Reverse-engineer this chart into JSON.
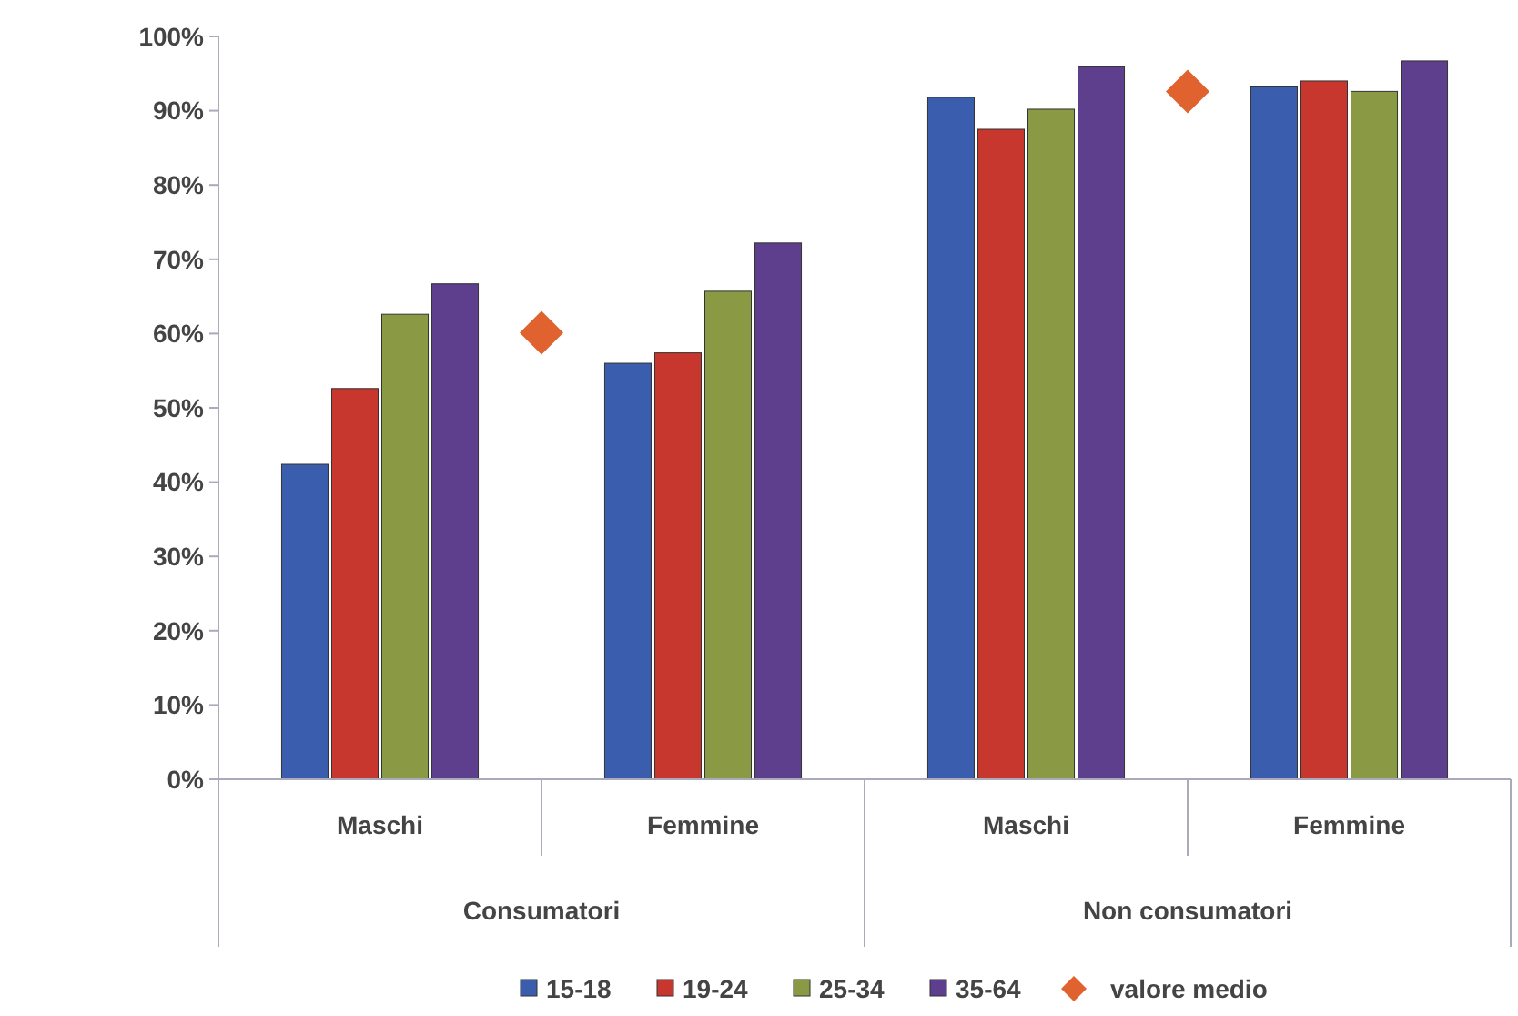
{
  "chart_data": {
    "type": "bar",
    "categories": [
      "Maschi",
      null,
      "Femmine",
      "Maschi",
      null,
      "Femmine"
    ],
    "annotations": [
      "Consumatori",
      "Non consumatori"
    ],
    "ylim": [
      0,
      100
    ],
    "yticks": [
      {
        "value": 0,
        "label": "0%"
      },
      {
        "value": 10,
        "label": "10%"
      },
      {
        "value": 20,
        "label": "20%"
      },
      {
        "value": 30,
        "label": "30%"
      },
      {
        "value": 40,
        "label": "40%"
      },
      {
        "value": 50,
        "label": "50%"
      },
      {
        "value": 60,
        "label": "60%"
      },
      {
        "value": 70,
        "label": "70%"
      },
      {
        "value": 80,
        "label": "80%"
      },
      {
        "value": 90,
        "label": "90%"
      },
      {
        "value": 100,
        "label": "100%"
      }
    ],
    "series": [
      {
        "name": "15-18",
        "color": "#3a5dae",
        "values": [
          42.4,
          null,
          56.0,
          91.8,
          null,
          93.2
        ]
      },
      {
        "name": "19-24",
        "color": "#c8372d",
        "values": [
          52.6,
          null,
          57.4,
          87.5,
          null,
          94.0
        ]
      },
      {
        "name": "25-34",
        "color": "#8a9a44",
        "values": [
          62.6,
          null,
          65.7,
          90.2,
          null,
          92.6
        ]
      },
      {
        "name": "35-64",
        "color": "#5e3f8e",
        "values": [
          66.7,
          null,
          72.2,
          95.9,
          null,
          96.7
        ]
      },
      {
        "name": "valore medio",
        "type": "scatter",
        "color": "#e0622f",
        "marker": "diamond",
        "values": [
          null,
          60.1,
          null,
          null,
          92.6,
          null
        ]
      }
    ],
    "legend": "bottom",
    "grid": false
  }
}
